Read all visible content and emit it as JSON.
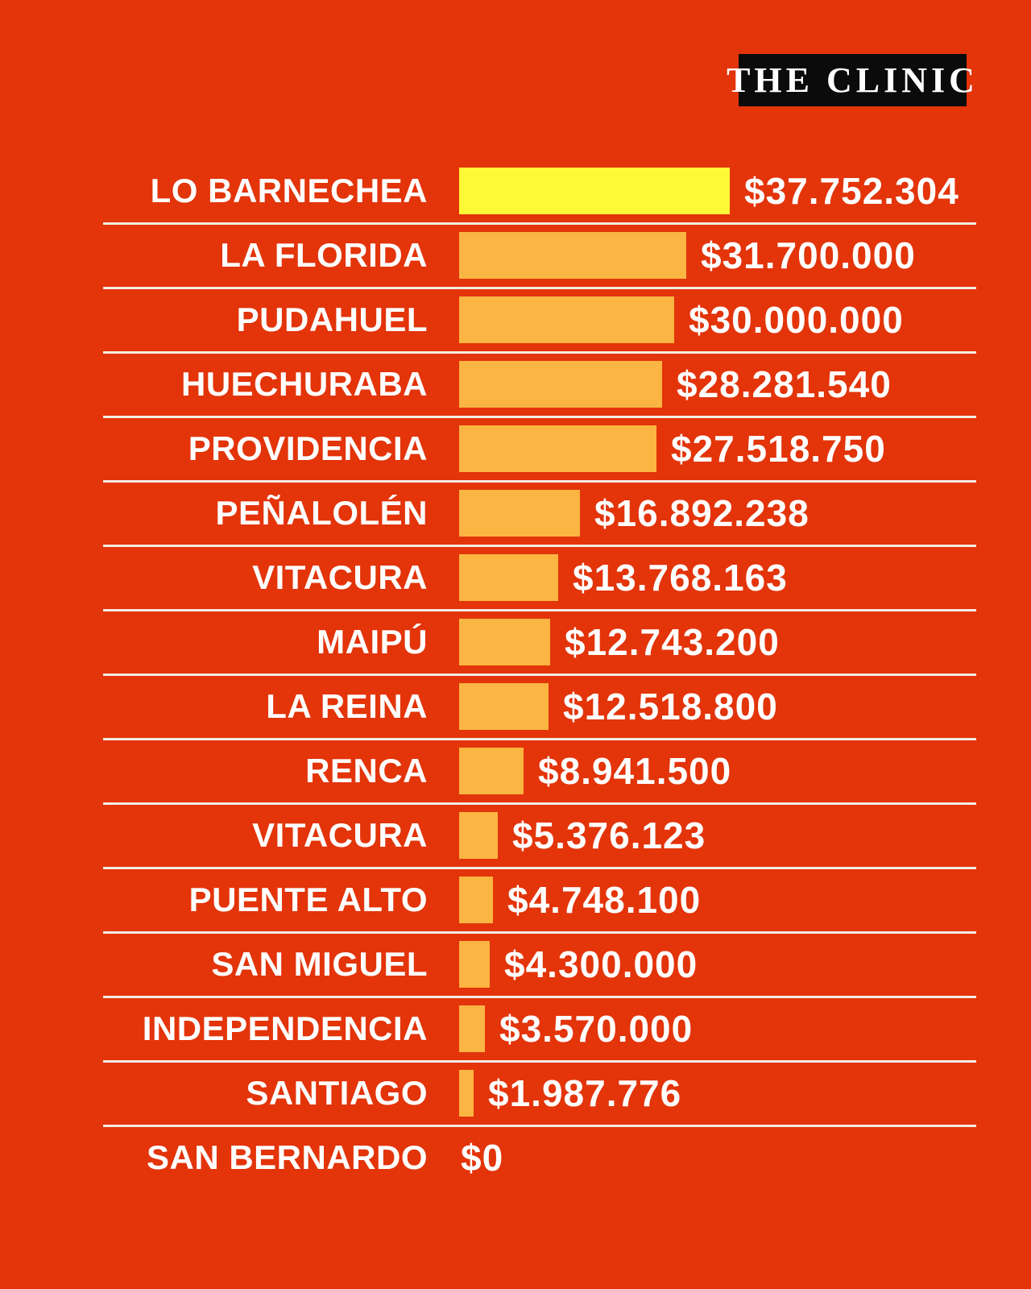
{
  "brand": {
    "logo_text": "THE CLINIC"
  },
  "colors": {
    "background": "#E3340A",
    "bar": "#FBB542",
    "bar_highlight": "#FDF936",
    "divider": "#F2EDE4",
    "text": "#FFFFFF",
    "logo_background": "#0B0B0B",
    "logo_text": "#FFFFFF"
  },
  "chart_data": {
    "type": "bar",
    "orientation": "horizontal",
    "title": "",
    "categories": [
      "LO BARNECHEA",
      "LA FLORIDA",
      "PUDAHUEL",
      "HUECHURABA",
      "PROVIDENCIA",
      "PEÑALOLÉN",
      "VITACURA",
      "MAIPÚ",
      "LA REINA",
      "RENCA",
      "VITACURA",
      "PUENTE ALTO",
      "SAN MIGUEL",
      "INDEPENDENCIA",
      "SANTIAGO",
      "SAN BERNARDO"
    ],
    "values": [
      37752304,
      31700000,
      30000000,
      28281540,
      27518750,
      16892238,
      13768163,
      12743200,
      12518800,
      8941500,
      5376123,
      4748100,
      4300000,
      3570000,
      1987776,
      0
    ],
    "value_labels": [
      "$37.752.304",
      "$31.700.000",
      "$30.000.000",
      "$28.281.540",
      "$27.518.750",
      "$16.892.238",
      "$13.768.163",
      "$12.743.200",
      "$12.518.800",
      "$8.941.500",
      "$5.376.123",
      "$4.748.100",
      "$4.300.000",
      "$3.570.000",
      "$1.987.776",
      "$0"
    ],
    "max_value": 37752304,
    "highlight_index": 0,
    "axis_ticks": [],
    "grid": false,
    "legend": false,
    "bar_color": "#FBB542",
    "highlight_color": "#FDF936"
  }
}
